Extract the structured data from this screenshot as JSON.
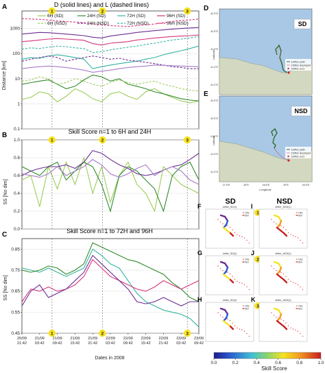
{
  "colors": {
    "6H": "#9ccc59",
    "24H": "#2f8a2a",
    "72H": "#2fb39f",
    "96H": "#d6337a",
    "purple": "#6a2c91",
    "lightpurple": "#a77bc8",
    "marker": "#f7e21e",
    "water": "#a9c8e6",
    "land": "#d3d8c1",
    "path": "#2f6b2c",
    "end": "#d52020"
  },
  "markers": [
    "1",
    "2",
    "3"
  ],
  "xticks": [
    "20/09\n21:42",
    "21/09\n03:42",
    "21/09\n09:42",
    "21/09\n15:42",
    "21/09\n21:42",
    "22/09\n03:42",
    "22/09\n09:42",
    "22/09\n15:42",
    "22/09\n21:42",
    "23/09\n03:42",
    "23/09\n09:42"
  ],
  "chart_data": [
    {
      "panel": "A",
      "type": "line",
      "title": "D (solid lines) and L (dashed lines)",
      "ylabel": "Distance [km]",
      "yscale": "log",
      "ylim": [
        0.1,
        5000
      ],
      "yticks": [
        "0.1",
        "1",
        "10",
        "100",
        "1000"
      ],
      "series": [
        {
          "name": "6H (SD)",
          "color": "6H",
          "dash": false,
          "values": [
            1.5,
            1.8,
            3,
            2.5,
            1.2,
            2,
            4,
            2.8,
            1.6,
            1.2,
            2.5,
            3,
            2,
            1.5,
            3,
            4,
            2.5,
            1.8,
            1.3,
            1.1,
            1.3
          ]
        },
        {
          "name": "24H (SD)",
          "color": "24H",
          "dash": false,
          "values": [
            6,
            7,
            8,
            9,
            6,
            4,
            5,
            9,
            14,
            12,
            8,
            10,
            6,
            5,
            4,
            3,
            2.5,
            2,
            1.6,
            1.4,
            1.3
          ]
        },
        {
          "name": "72H (SD)",
          "color": "72H",
          "dash": false,
          "values": [
            60,
            70,
            65,
            80,
            90,
            80,
            70,
            60,
            25,
            30,
            35,
            40,
            45,
            50,
            60,
            70,
            90,
            110,
            130,
            160,
            200
          ]
        },
        {
          "name": "96H (SD)",
          "color": "96H",
          "dash": false,
          "values": [
            300,
            320,
            350,
            380,
            400,
            380,
            360,
            340,
            250,
            220,
            260,
            280,
            300,
            350,
            380,
            420,
            450,
            480,
            500,
            520,
            550
          ]
        },
        {
          "name": "6H (NSD)",
          "color": "6H",
          "dash": true,
          "values": [
            8,
            9,
            12,
            10,
            6,
            7,
            10,
            8,
            6,
            5,
            7,
            9,
            7,
            6,
            7,
            8,
            6,
            5,
            4,
            3.5,
            3.2
          ]
        },
        {
          "name": "24H (NSD)",
          "color": "purple",
          "dash": true,
          "values": [
            50,
            60,
            70,
            80,
            70,
            50,
            60,
            70,
            80,
            70,
            60,
            65,
            55,
            50,
            45,
            40,
            35,
            30,
            28,
            25,
            25
          ]
        },
        {
          "name": "72H (NSD)",
          "color": "72H",
          "dash": true,
          "values": [
            150,
            170,
            160,
            180,
            200,
            190,
            170,
            160,
            110,
            120,
            140,
            160,
            180,
            200,
            230,
            260,
            300,
            350,
            380,
            420,
            480
          ]
        },
        {
          "name": "96H (NSD)",
          "color": "96H",
          "dash": true,
          "values": [
            2500,
            2400,
            2300,
            2200,
            2000,
            1900,
            1800,
            1700,
            1500,
            1400,
            1300,
            1250,
            1200,
            1300,
            1400,
            1500,
            1700,
            1900,
            2100,
            2200,
            2400
          ]
        },
        {
          "name": "",
          "color": "purple",
          "dash": false,
          "values": [
            600,
            650,
            700,
            680,
            640,
            600,
            560,
            520,
            450,
            420,
            500,
            560,
            620,
            700,
            760,
            820,
            880,
            950,
            1000,
            1050,
            1100
          ]
        },
        {
          "name": "",
          "color": "lightpurple",
          "dash": false,
          "values": [
            25,
            28,
            30,
            32,
            30,
            28,
            25,
            22,
            18,
            20,
            22,
            25,
            28,
            30,
            32,
            35,
            34,
            33,
            32,
            31,
            30
          ]
        }
      ]
    },
    {
      "panel": "B",
      "type": "line",
      "title": "Skill Score n=1 to 6H and 24H",
      "ylabel": "SS [No dim]",
      "ylim": [
        0,
        1
      ],
      "yticks": [
        "0.0",
        "0.2",
        "0.4",
        "0.6",
        "0.8",
        "1.0"
      ],
      "series": [
        {
          "name": "",
          "color": "6H",
          "values": [
            0.55,
            0.6,
            0.25,
            0.7,
            0.45,
            0.75,
            0.5,
            0.8,
            0.4,
            0.7,
            0.3,
            0.6,
            0.75,
            0.5,
            0.4,
            0.2,
            0.7,
            0.6,
            0.5,
            0.45,
            0.4
          ]
        },
        {
          "name": "",
          "color": "24H",
          "values": [
            0.7,
            0.65,
            0.6,
            0.7,
            0.75,
            0.55,
            0.65,
            0.75,
            0.7,
            0.5,
            0.2,
            0.6,
            0.7,
            0.65,
            0.55,
            0.45,
            0.2,
            0.6,
            0.7,
            0.75,
            0.55
          ]
        },
        {
          "name": "",
          "color": "purple",
          "values": [
            0.6,
            0.65,
            0.68,
            0.7,
            0.7,
            0.72,
            0.68,
            0.75,
            0.88,
            0.85,
            0.78,
            0.72,
            0.68,
            0.62,
            0.6,
            0.62,
            0.66,
            0.7,
            0.72,
            0.78,
            0.85
          ]
        },
        {
          "name": "",
          "color": "lightpurple",
          "values": [
            0.62,
            0.6,
            0.58,
            0.62,
            0.7,
            0.6,
            0.65,
            0.7,
            0.78,
            0.72,
            0.62,
            0.58,
            0.62,
            0.68,
            0.72,
            0.6,
            0.66,
            0.7,
            0.65,
            0.55,
            0.5
          ]
        }
      ]
    },
    {
      "panel": "C",
      "type": "line",
      "title": "Skill Score n=1 to 72H and 96H",
      "ylabel": "SS [No dim]",
      "ylim": [
        0.45,
        0.9
      ],
      "yticks": [
        "0.45",
        "0.55",
        "0.65",
        "0.75",
        "0.85"
      ],
      "series": [
        {
          "name": "",
          "color": "72H",
          "values": [
            0.76,
            0.75,
            0.74,
            0.76,
            0.74,
            0.72,
            0.74,
            0.76,
            0.85,
            0.82,
            0.78,
            0.76,
            0.7,
            0.64,
            0.6,
            0.58,
            0.56,
            0.55,
            0.54,
            0.52,
            0.48
          ]
        },
        {
          "name": "",
          "color": "24H",
          "values": [
            0.75,
            0.74,
            0.75,
            0.77,
            0.76,
            0.73,
            0.75,
            0.78,
            0.88,
            0.86,
            0.84,
            0.82,
            0.8,
            0.79,
            0.77,
            0.75,
            0.73,
            0.69,
            0.66,
            0.62,
            0.6
          ]
        },
        {
          "name": "",
          "color": "96H",
          "values": [
            0.6,
            0.66,
            0.65,
            0.67,
            0.65,
            0.66,
            0.68,
            0.72,
            0.8,
            0.76,
            0.72,
            0.7,
            0.68,
            0.66,
            0.65,
            0.67,
            0.7,
            0.68,
            0.66,
            0.68,
            0.7
          ]
        },
        {
          "name": "",
          "color": "purple",
          "values": [
            0.58,
            0.65,
            0.68,
            0.62,
            0.64,
            0.66,
            0.7,
            0.74,
            0.82,
            0.78,
            0.74,
            0.7,
            0.66,
            0.6,
            0.59,
            0.6,
            0.62,
            0.6,
            0.58,
            0.6,
            0.6
          ]
        }
      ]
    }
  ],
  "panelA": {
    "letter": "A",
    "title": "D (solid lines) and L (dashed lines)",
    "ylabel": "Distance [km]",
    "legend": [
      "6H (SD)",
      "24H (SD)",
      "72H (SD)",
      "96H (SD)",
      "6H (NSD)",
      "24H (NSD)",
      "72H (NSD)",
      "96H (NSD)"
    ]
  },
  "panelB": {
    "letter": "B",
    "title": "Skill Score n=1 to 6H and 24H",
    "ylabel": "SS [No dim]"
  },
  "panelC": {
    "letter": "C",
    "title": "Skill Score n=1 to 72H and 96H",
    "ylabel": "SS [No dim]",
    "xlabel": "Dates in 2008"
  },
  "maps": {
    "D": {
      "letter": "D",
      "tag": "SD",
      "ylabel": "Latitude",
      "xlabel": "",
      "legend": [
        "Drifter path",
        "Drifter deployed",
        "Drifter end"
      ],
      "yticks": [
        "42.9°E",
        "42.5°E",
        "41.6°E",
        "41.4°E",
        "41.2°E"
      ],
      "xticks": [
        "27.5°E",
        "28°E",
        "28.5°E",
        "29°E",
        "29.5°E"
      ]
    },
    "E": {
      "letter": "E",
      "tag": "NSD",
      "ylabel": "Latitude",
      "xlabel": "Longitude",
      "legend": [
        "Drifter path",
        "Drifter deployed",
        "Drifter end"
      ],
      "yticks": [
        "42.9°E",
        "42.5°E",
        "41.6°E",
        "41.4°E",
        "41.2°E"
      ],
      "xticks": [
        "27.5°E",
        "28°E",
        "28.5°E",
        "29°E",
        "29.5°E"
      ]
    }
  },
  "small": {
    "SD": "SD",
    "NSD": "NSD",
    "panels": [
      {
        "letter": "F",
        "title": "drifter_SD(1)"
      },
      {
        "letter": "I",
        "title": "drifter_NSD(1)"
      },
      {
        "letter": "G",
        "title": "drifter_SD(2)"
      },
      {
        "letter": "J",
        "title": "drifter_NSD(2)"
      },
      {
        "letter": "H",
        "title": "drifter_SD(3)"
      },
      {
        "letter": "K",
        "title": "drifter_NSD(3)"
      }
    ],
    "legend": [
      "Obs",
      "Sim"
    ]
  },
  "colorbar": {
    "ticks": [
      "0.0",
      "0.2",
      "0.4",
      "0.6",
      "0.8",
      "1.0"
    ],
    "label": "Skill Score"
  }
}
